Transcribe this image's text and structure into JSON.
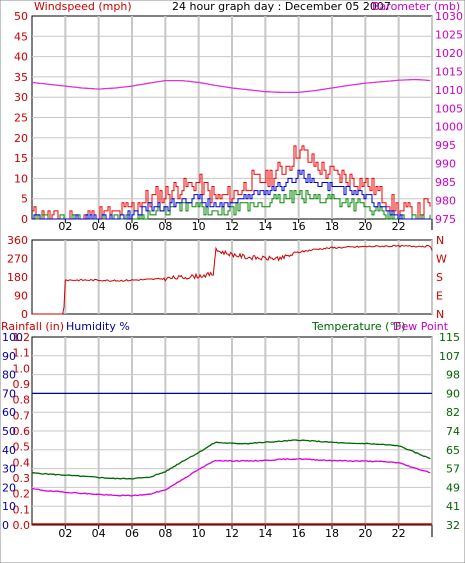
{
  "header": {
    "left_label": "Windspeed (mph)",
    "center_label": "24 hour graph day : December 05 2007",
    "right_label": "Barometer (mb)"
  },
  "colors": {
    "wind_axis": "#cc0000",
    "baro_axis": "#cc00cc",
    "rain_axis": "#cc0000",
    "humidity_axis": "#000099",
    "temp_axis": "#006600",
    "dewpoint_axis": "#cc00cc",
    "gust_line": "#ee0000",
    "speed_line": "#0000cc",
    "avg_line": "#008800",
    "baro_line": "#dd33dd",
    "dir_line": "#cc0000",
    "humidity_line": "#000099",
    "temp_line": "#006600",
    "dew_line": "#dd00dd",
    "rain_line": "#cc0000",
    "grid": "#c8c8c8",
    "frame": "#000000"
  },
  "chart_data": [
    {
      "type": "line",
      "id": "wind_baro",
      "xticks": [
        "02",
        "04",
        "06",
        "08",
        "10",
        "12",
        "14",
        "16",
        "18",
        "20",
        "22",
        "I"
      ],
      "left_axis": {
        "label": "Windspeed (mph)",
        "ticks": [
          "0",
          "5",
          "10",
          "15",
          "20",
          "25",
          "30",
          "35",
          "40",
          "45",
          "50"
        ],
        "ylim": [
          0,
          50
        ]
      },
      "right_axis": {
        "label": "Barometer (mb)",
        "ticks": [
          "975",
          "980",
          "985",
          "990",
          "995",
          "1000",
          "1005",
          "1010",
          "1015",
          "1020",
          "1025",
          "1030"
        ],
        "ylim": [
          975,
          1030
        ]
      },
      "series": [
        {
          "axis": "right",
          "x": [
            0,
            1,
            2,
            3,
            4,
            5,
            6,
            7,
            8,
            9,
            10,
            11,
            12,
            13,
            14,
            15,
            16,
            17,
            18,
            19,
            20,
            21,
            22,
            23,
            24
          ],
          "values": [
            1012,
            1011.5,
            1011,
            1010.5,
            1010.2,
            1010.5,
            1011,
            1011.8,
            1012.5,
            1012.5,
            1012,
            1011.2,
            1010.5,
            1010,
            1009.5,
            1009.3,
            1009.3,
            1009.8,
            1010.5,
            1011.2,
            1011.8,
            1012.2,
            1012.6,
            1012.8,
            1012.5
          ]
        },
        {
          "axis": "left",
          "x": [
            0,
            1,
            2,
            3,
            4,
            5,
            6,
            7,
            8,
            9,
            10,
            11,
            12,
            13,
            14,
            15,
            16,
            17,
            18,
            19,
            20,
            21,
            22,
            23,
            24
          ],
          "values": [
            1,
            0,
            0,
            0,
            1,
            1,
            3,
            5,
            6,
            8,
            9,
            5,
            6,
            9,
            10,
            12,
            17,
            13,
            11,
            10,
            9,
            6,
            2,
            1,
            4
          ]
        },
        {
          "axis": "left",
          "x": [
            0,
            1,
            2,
            3,
            4,
            5,
            6,
            7,
            8,
            9,
            10,
            11,
            12,
            13,
            14,
            15,
            16,
            17,
            18,
            19,
            20,
            21,
            22,
            23,
            24
          ],
          "values": [
            0,
            0,
            0,
            0,
            0,
            0,
            1,
            3,
            3,
            5,
            5,
            3,
            4,
            6,
            7,
            8,
            11,
            9,
            8,
            7,
            6,
            3,
            0,
            0,
            0
          ]
        },
        {
          "axis": "left",
          "x": [
            0,
            1,
            2,
            3,
            4,
            5,
            6,
            7,
            8,
            9,
            10,
            11,
            12,
            13,
            14,
            15,
            16,
            17,
            18,
            19,
            20,
            21,
            22,
            23,
            24
          ],
          "values": [
            0,
            0,
            0,
            0,
            0,
            0,
            0,
            1,
            2,
            3,
            3,
            1,
            2,
            3,
            4,
            5,
            6,
            5,
            5,
            4,
            3,
            1,
            0,
            0,
            0
          ]
        }
      ]
    },
    {
      "type": "line",
      "id": "direction",
      "left_axis": {
        "ticks": [
          "360",
          "270",
          "180",
          "90",
          "0"
        ],
        "ylim": [
          0,
          360
        ]
      },
      "right_axis": {
        "ticks": [
          "N",
          "W",
          "S",
          "E",
          "N"
        ]
      },
      "series": [
        {
          "x": [
            0,
            1.9,
            2,
            3,
            4,
            5,
            6,
            7,
            8,
            9,
            10,
            10.9,
            11,
            12,
            13,
            14,
            15,
            16,
            17,
            18,
            19,
            20,
            21,
            22,
            23,
            23.9,
            24
          ],
          "values": [
            0,
            0,
            165,
            165,
            165,
            162,
            165,
            168,
            172,
            178,
            185,
            195,
            310,
            290,
            275,
            270,
            272,
            300,
            315,
            322,
            325,
            328,
            330,
            330,
            330,
            330,
            310
          ]
        }
      ]
    },
    {
      "type": "line",
      "id": "rain_hum_temp",
      "xticks": [
        "02",
        "04",
        "06",
        "08",
        "10",
        "12",
        "14",
        "16",
        "18",
        "20",
        "22",
        "I"
      ],
      "left_axis_rain": {
        "label": "Rainfall (in)",
        "ticks": [
          "0.0",
          "0.1",
          "0.2",
          "0.3",
          "0.4",
          "0.5",
          "0.6",
          "0.7",
          "0.8",
          "0.9",
          "1.0",
          "1.1",
          "1.2"
        ],
        "ylim": [
          0,
          1.2
        ]
      },
      "left_axis_humidity": {
        "label": "Humidity %",
        "ticks": [
          "0",
          "10",
          "20",
          "30",
          "40",
          "50",
          "60",
          "70",
          "80",
          "90",
          "100"
        ],
        "ylim": [
          0,
          100
        ]
      },
      "right_axis": {
        "label": "Temperature (°F)",
        "label2": "Dew Point",
        "ticks": [
          "32",
          "41",
          "49",
          "57",
          "65",
          "74",
          "82",
          "90",
          "98",
          "107",
          "115"
        ],
        "ylim": [
          32,
          115
        ]
      },
      "series": [
        {
          "axis": "humidity",
          "x": [
            0,
            24
          ],
          "values": [
            70,
            70
          ]
        },
        {
          "axis": "temp",
          "x": [
            0,
            1,
            2,
            3,
            4,
            5,
            6,
            7,
            8,
            9,
            10,
            11,
            12,
            13,
            14,
            15,
            16,
            17,
            18,
            19,
            20,
            21,
            22,
            23,
            24
          ],
          "values": [
            55,
            54.5,
            54,
            53.5,
            53,
            52.5,
            52.5,
            53,
            55.5,
            60,
            64,
            68.5,
            68,
            68,
            68.5,
            69,
            69.5,
            69,
            68.5,
            68,
            68,
            67.5,
            67,
            64,
            61
          ]
        },
        {
          "axis": "temp",
          "x": [
            0,
            1,
            2,
            3,
            4,
            5,
            6,
            7,
            8,
            9,
            10,
            11,
            12,
            13,
            14,
            15,
            16,
            17,
            18,
            19,
            20,
            21,
            22,
            23,
            24
          ],
          "values": [
            48,
            47,
            46.5,
            46,
            45.5,
            45,
            45,
            45.5,
            47.5,
            52,
            56.5,
            60.5,
            60.3,
            60.3,
            60.5,
            61,
            61.2,
            60.8,
            60.5,
            60.3,
            60.2,
            60,
            59.5,
            57,
            55
          ]
        },
        {
          "axis": "rain",
          "x": [
            0,
            24
          ],
          "values": [
            0,
            0
          ]
        }
      ]
    }
  ]
}
